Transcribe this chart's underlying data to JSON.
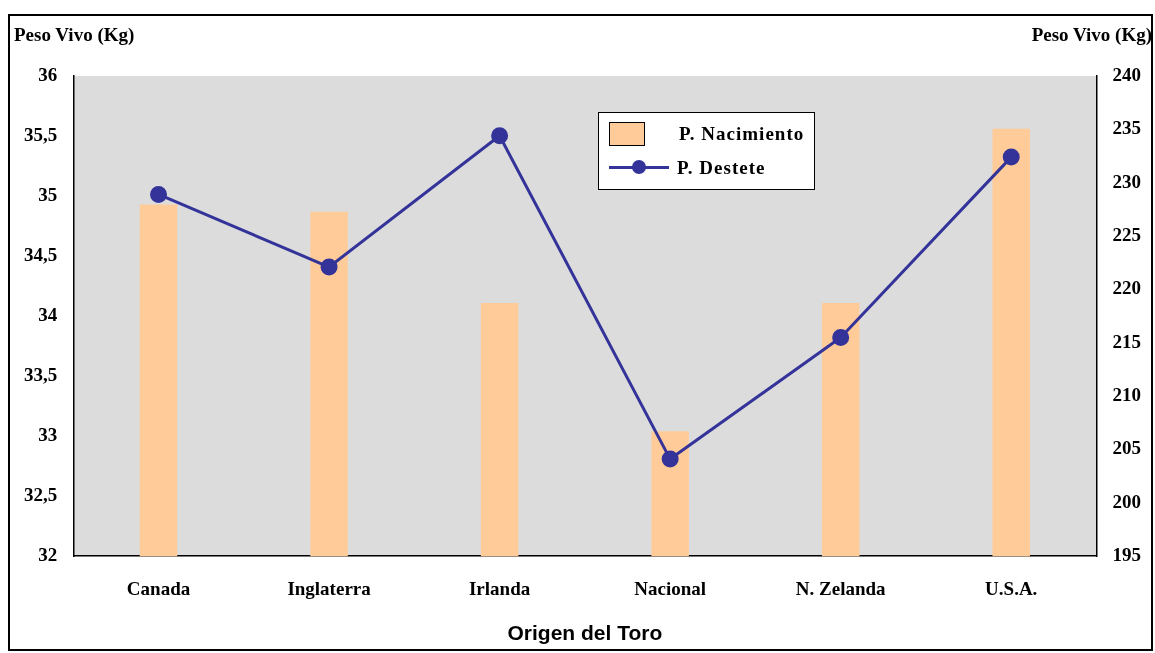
{
  "chart_data": {
    "type": "bar",
    "xlabel": "Origen del Toro",
    "ylabel": "Peso Vivo (Kg)",
    "y2label": "Peso Vivo (Kg)",
    "categories": [
      "Canada",
      "Inglaterra",
      "Irlanda",
      "Nacional",
      "N. Zelanda",
      "U.S.A."
    ],
    "series": [
      {
        "name": "P. Nacimiento",
        "color": "#ffcc99",
        "values": [
          34.93,
          34.87,
          34.11,
          33.04,
          34.11,
          35.56
        ]
      },
      {
        "name": "P. Destete",
        "type": "line",
        "axis": "y2",
        "color": "#333399",
        "values": [
          228.9,
          222.1,
          234.4,
          204.1,
          215.5,
          232.4
        ]
      }
    ],
    "ylim": [
      32,
      36
    ],
    "yticks": [
      32,
      {
        "value": 32.5,
        "label": "32,5"
      },
      33,
      {
        "value": 33.5,
        "label": "33,5"
      },
      34,
      {
        "value": 34.5,
        "label": "34,5"
      },
      35,
      {
        "value": 35.5,
        "label": "35,5"
      },
      36
    ],
    "y2lim": [
      195,
      240
    ],
    "y2ticks": [
      195,
      200,
      205,
      210,
      215,
      220,
      225,
      230,
      235,
      240
    ],
    "grid": false,
    "legend": "top right",
    "marker": "circle",
    "line_style": "solid"
  }
}
